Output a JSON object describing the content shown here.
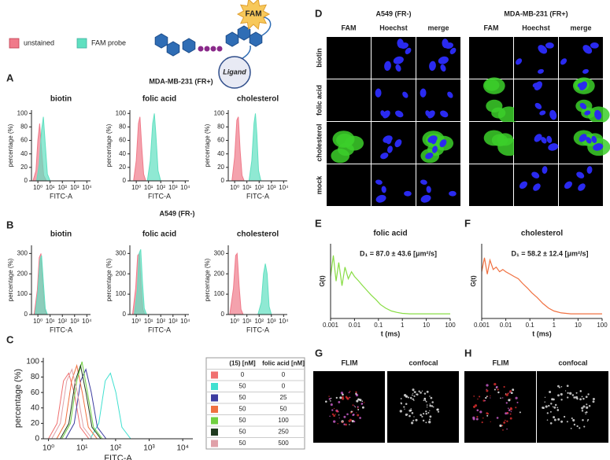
{
  "legend": [
    {
      "label": "unstained",
      "color": "#f07a8a"
    },
    {
      "label": "FAM probe",
      "color": "#5fe0c0"
    }
  ],
  "schematic": {
    "tag": "FAM",
    "ligand": "Ligand"
  },
  "panel_labels": [
    "A",
    "B",
    "C",
    "D",
    "E",
    "F",
    "G",
    "H"
  ],
  "histogram_headers": [
    "MDA-MB-231 (FR+)",
    "A549 (FR-)"
  ],
  "microscopy": {
    "groups": [
      "A549 (FR-)",
      "MDA-MB-231 (FR+)"
    ],
    "columns": [
      "FAM",
      "Hoechst",
      "merge"
    ],
    "rows": [
      "biotin",
      "folic acid",
      "cholesterol",
      "mock"
    ]
  },
  "flim": {
    "columns": [
      "FLIM",
      "confocal"
    ]
  },
  "chart_data": [
    {
      "type": "area",
      "title": "biotin",
      "xlabel": "FITC-A",
      "ylabel": "percentage (%)",
      "log_x": true,
      "xlim": [
        0.3,
        20000
      ],
      "xticks": [
        {
          "value": 1,
          "label": "10⁰"
        },
        {
          "value": 10,
          "label": "10¹"
        },
        {
          "value": 100,
          "label": "10²"
        },
        {
          "value": 1000,
          "label": "10³"
        },
        {
          "value": 10000,
          "label": "10⁴"
        }
      ],
      "ylim": [
        0,
        105
      ],
      "yticks": [
        0,
        20,
        40,
        60,
        80,
        100
      ],
      "series": [
        {
          "color": "#f07a8a",
          "x": [
            0.4,
            0.7,
            1,
            1.4,
            2,
            3,
            5
          ],
          "values": [
            0,
            15,
            60,
            85,
            45,
            8,
            0
          ]
        },
        {
          "color": "#5fe0c0",
          "x": [
            0.8,
            1.3,
            2,
            2.8,
            4,
            6,
            10
          ],
          "values": [
            0,
            25,
            75,
            95,
            55,
            10,
            0
          ]
        }
      ]
    },
    {
      "type": "area",
      "title": "folic acid",
      "xlabel": "FITC-A",
      "ylabel": "percentage (%)",
      "log_x": true,
      "xlim": [
        0.3,
        20000
      ],
      "xticks": [
        {
          "value": 1,
          "label": "10⁰"
        },
        {
          "value": 10,
          "label": "10¹"
        },
        {
          "value": 100,
          "label": "10²"
        },
        {
          "value": 1000,
          "label": "10³"
        },
        {
          "value": 10000,
          "label": "10⁴"
        }
      ],
      "ylim": [
        0,
        105
      ],
      "yticks": [
        0,
        20,
        40,
        60,
        80,
        100
      ],
      "series": [
        {
          "color": "#f07a8a",
          "x": [
            0.6,
            1,
            1.5,
            2,
            2.8,
            4,
            6
          ],
          "values": [
            0,
            30,
            85,
            95,
            50,
            10,
            0
          ]
        },
        {
          "color": "#5fe0c0",
          "x": [
            8,
            14,
            22,
            30,
            40,
            60,
            100
          ],
          "values": [
            0,
            30,
            85,
            100,
            70,
            15,
            0
          ]
        }
      ]
    },
    {
      "type": "area",
      "title": "cholesterol",
      "xlabel": "FITC-A",
      "ylabel": "percentage (%)",
      "log_x": true,
      "xlim": [
        0.3,
        20000
      ],
      "xticks": [
        {
          "value": 1,
          "label": "10⁰"
        },
        {
          "value": 10,
          "label": "10¹"
        },
        {
          "value": 100,
          "label": "10²"
        },
        {
          "value": 1000,
          "label": "10³"
        },
        {
          "value": 10000,
          "label": "10⁴"
        }
      ],
      "ylim": [
        0,
        105
      ],
      "yticks": [
        0,
        20,
        40,
        60,
        80,
        100
      ],
      "series": [
        {
          "color": "#f07a8a",
          "x": [
            0.6,
            1,
            1.5,
            2,
            2.8,
            4,
            6
          ],
          "values": [
            0,
            35,
            90,
            95,
            45,
            8,
            0
          ]
        },
        {
          "color": "#5fe0c0",
          "x": [
            15,
            25,
            38,
            50,
            65,
            90,
            140
          ],
          "values": [
            0,
            30,
            85,
            100,
            70,
            15,
            0
          ]
        }
      ]
    },
    {
      "type": "area",
      "title": "biotin",
      "xlabel": "FITC-A",
      "ylabel": "percentage (%)",
      "log_x": true,
      "xlim": [
        0.3,
        20000
      ],
      "xticks": [
        {
          "value": 1,
          "label": "10⁰"
        },
        {
          "value": 10,
          "label": "10¹"
        },
        {
          "value": 100,
          "label": "10²"
        },
        {
          "value": 1000,
          "label": "10³"
        },
        {
          "value": 10000,
          "label": "10⁴"
        }
      ],
      "ylim": [
        0,
        340
      ],
      "yticks": [
        0,
        100,
        200,
        300
      ],
      "series": [
        {
          "color": "#f07a8a",
          "x": [
            0.5,
            0.9,
            1.3,
            1.8,
            2.5,
            3.5,
            5
          ],
          "values": [
            0,
            120,
            280,
            300,
            150,
            30,
            0
          ]
        },
        {
          "color": "#5fe0c0",
          "x": [
            0.6,
            1,
            1.5,
            2,
            2.8,
            4,
            6
          ],
          "values": [
            0,
            110,
            270,
            290,
            160,
            30,
            0
          ]
        }
      ]
    },
    {
      "type": "area",
      "title": "folic acid",
      "xlabel": "FITC-A",
      "ylabel": "percentage (%)",
      "log_x": true,
      "xlim": [
        0.3,
        20000
      ],
      "xticks": [
        {
          "value": 1,
          "label": "10⁰"
        },
        {
          "value": 10,
          "label": "10¹"
        },
        {
          "value": 100,
          "label": "10²"
        },
        {
          "value": 1000,
          "label": "10³"
        },
        {
          "value": 10000,
          "label": "10⁴"
        }
      ],
      "ylim": [
        0,
        340
      ],
      "yticks": [
        0,
        100,
        200,
        300
      ],
      "series": [
        {
          "color": "#f07a8a",
          "x": [
            0.5,
            0.9,
            1.3,
            1.8,
            2.5,
            3.5,
            5
          ],
          "values": [
            0,
            130,
            290,
            300,
            140,
            25,
            0
          ]
        },
        {
          "color": "#5fe0c0",
          "x": [
            0.7,
            1.2,
            1.7,
            2.3,
            3.2,
            4.5,
            7
          ],
          "values": [
            0,
            120,
            300,
            320,
            160,
            30,
            0
          ]
        }
      ]
    },
    {
      "type": "area",
      "title": "cholesterol",
      "xlabel": "FITC-A",
      "ylabel": "percentage (%)",
      "log_x": true,
      "xlim": [
        0.3,
        20000
      ],
      "xticks": [
        {
          "value": 1,
          "label": "10⁰"
        },
        {
          "value": 10,
          "label": "10¹"
        },
        {
          "value": 100,
          "label": "10²"
        },
        {
          "value": 1000,
          "label": "10³"
        },
        {
          "value": 10000,
          "label": "10⁴"
        }
      ],
      "ylim": [
        0,
        340
      ],
      "yticks": [
        0,
        100,
        200,
        300
      ],
      "series": [
        {
          "color": "#f07a8a",
          "x": [
            0.4,
            0.8,
            1.2,
            1.6,
            2.3,
            3.3,
            5
          ],
          "values": [
            0,
            130,
            290,
            300,
            140,
            25,
            0
          ]
        },
        {
          "color": "#5fe0c0",
          "x": [
            80,
            150,
            230,
            320,
            450,
            650,
            1000
          ],
          "values": [
            0,
            60,
            200,
            250,
            200,
            40,
            0
          ]
        }
      ]
    },
    {
      "type": "area",
      "xlabel": "FITC-A",
      "ylabel": "percentage (%)",
      "log_x": true,
      "xlim": [
        0.7,
        20000
      ],
      "xticks": [
        {
          "value": 1,
          "label": "10⁰"
        },
        {
          "value": 10,
          "label": "10¹"
        },
        {
          "value": 100,
          "label": "10²"
        },
        {
          "value": 1000,
          "label": "10³"
        },
        {
          "value": 10000,
          "label": "10⁴"
        }
      ],
      "ylim": [
        0,
        105
      ],
      "yticks": [
        0,
        20,
        40,
        60,
        80,
        100
      ],
      "fill_opacity": 0,
      "series": [
        {
          "color": "#f07070",
          "x": [
            1,
            1.8,
            2.8,
            4,
            5.8,
            8.8,
            16
          ],
          "values": [
            0,
            20,
            75,
            85,
            60,
            15,
            0
          ]
        },
        {
          "color": "#40e0d0",
          "x": [
            17.5,
            31.5,
            49,
            70,
            101.5,
            154,
            280
          ],
          "values": [
            0,
            20,
            75,
            85,
            60,
            15,
            0
          ]
        },
        {
          "color": "#3c3ca0",
          "x": [
            3.25,
            5.85,
            9.1,
            13,
            18.85,
            28.6,
            52
          ],
          "values": [
            0,
            20,
            75,
            90,
            60,
            15,
            0
          ]
        },
        {
          "color": "#f07040",
          "x": [
            1.75,
            3.15,
            4.9,
            7,
            10.15,
            15.4,
            28
          ],
          "values": [
            0,
            20,
            75,
            95,
            60,
            15,
            0
          ]
        },
        {
          "color": "#70d040",
          "x": [
            2.5,
            4.5,
            7,
            10,
            14.5,
            22,
            40
          ],
          "values": [
            0,
            20,
            75,
            100,
            60,
            15,
            0
          ]
        },
        {
          "color": "#1f3a1f",
          "x": [
            2.25,
            4.05,
            6.3,
            9,
            13.05,
            19.8,
            36
          ],
          "values": [
            0,
            20,
            75,
            95,
            60,
            15,
            0
          ]
        },
        {
          "color": "#e0a0a8",
          "x": [
            1.25,
            2.25,
            3.5,
            5,
            7.25,
            11,
            20
          ],
          "values": [
            0,
            20,
            75,
            90,
            60,
            15,
            0
          ]
        }
      ],
      "table": {
        "columns": [
          "(15) [nM]",
          "folic acid [nM]"
        ],
        "rows": [
          [
            0,
            0
          ],
          [
            50,
            0
          ],
          [
            50,
            25
          ],
          [
            50,
            50
          ],
          [
            50,
            100
          ],
          [
            50,
            250
          ],
          [
            50,
            500
          ]
        ]
      }
    },
    {
      "type": "line",
      "title": "folic acid",
      "xlabel": "t (ms)",
      "ylabel": "G(t)",
      "annotation": "D₁ = 87.0 ± 43.6 [μm²/s]",
      "log_x": true,
      "xlim": [
        0.001,
        100
      ],
      "xticks": [
        0.001,
        0.01,
        0.1,
        1,
        10,
        100
      ],
      "ylim": [
        -0.1,
        1.5
      ],
      "series": [
        {
          "color": "#88dd44",
          "x": [
            0.001,
            0.0013,
            0.0017,
            0.0022,
            0.003,
            0.004,
            0.0055,
            0.0075,
            0.01,
            0.015,
            0.022,
            0.033,
            0.05,
            0.08,
            0.12,
            0.2,
            0.35,
            0.6,
            1,
            2,
            5,
            20,
            100
          ],
          "values": [
            0.8,
            1.25,
            0.7,
            1.1,
            0.6,
            1.0,
            0.75,
            0.9,
            0.8,
            0.7,
            0.6,
            0.5,
            0.4,
            0.3,
            0.2,
            0.12,
            0.06,
            0.03,
            0.01,
            0,
            0,
            0,
            0
          ]
        }
      ]
    },
    {
      "type": "line",
      "title": "cholesterol",
      "xlabel": "t (ms)",
      "ylabel": "G(t)",
      "annotation": "D₁ = 58.2 ± 12.4 [μm²/s]",
      "log_x": true,
      "xlim": [
        0.001,
        100
      ],
      "xticks": [
        0.001,
        0.01,
        0.1,
        1,
        10,
        100
      ],
      "ylim": [
        -0.1,
        1.5
      ],
      "series": [
        {
          "color": "#f07040",
          "x": [
            0.001,
            0.0013,
            0.0017,
            0.0022,
            0.003,
            0.004,
            0.0055,
            0.0075,
            0.01,
            0.015,
            0.022,
            0.033,
            0.05,
            0.08,
            0.12,
            0.2,
            0.35,
            0.6,
            1,
            2,
            5,
            20,
            100
          ],
          "values": [
            0.9,
            1.2,
            0.85,
            1.15,
            0.95,
            1.0,
            0.9,
            0.95,
            0.9,
            0.85,
            0.8,
            0.75,
            0.65,
            0.55,
            0.45,
            0.35,
            0.22,
            0.12,
            0.06,
            0.02,
            0,
            0,
            0
          ]
        }
      ]
    }
  ]
}
